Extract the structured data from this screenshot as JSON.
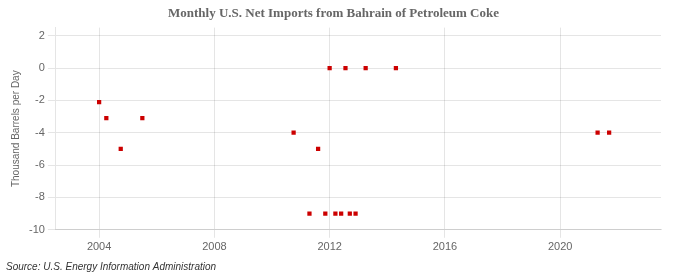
{
  "chart_data": {
    "type": "scatter",
    "title": "Monthly U.S. Net Imports from Bahrain of Petroleum Coke",
    "y_label": "Thousand Barrels per Day",
    "source": "Source: U.S. Energy Information Administration",
    "x": [
      2004.0,
      2004.25,
      2004.75,
      2005.5,
      2010.75,
      2011.3,
      2011.6,
      2011.85,
      2012.0,
      2012.2,
      2012.4,
      2012.55,
      2012.7,
      2012.9,
      2013.25,
      2014.3,
      2021.3,
      2021.7
    ],
    "values": [
      -2.1,
      -3.1,
      -5.0,
      -3.1,
      -4.0,
      -9.0,
      -5.0,
      -9.0,
      0.0,
      -9.0,
      -9.0,
      0.0,
      -9.0,
      -9.0,
      0.0,
      0.0,
      -4.0,
      -4.0
    ],
    "color": "#cc0000",
    "marker": "square",
    "xlim": [
      2002.5,
      2023.5
    ],
    "xticks": [
      2004,
      2008,
      2012,
      2016,
      2020
    ],
    "ylim": [
      -10,
      2.5
    ],
    "yticks": [
      -10,
      -8,
      -6,
      -4,
      -2,
      0,
      2
    ],
    "grid": true
  }
}
